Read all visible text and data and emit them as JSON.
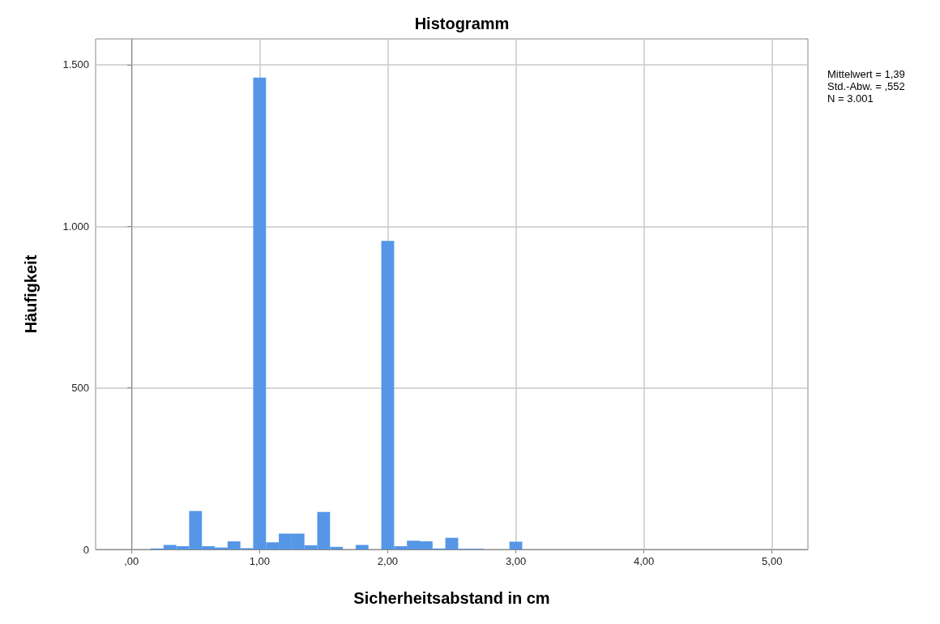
{
  "chart_data": {
    "type": "histogram",
    "title": "Histogramm",
    "xlabel": "Sicherheitsabstand in cm",
    "ylabel": "Häufigkeit",
    "annotations": [
      "Mittelwert = 1,39",
      "Std.-Abw. = ,552",
      "N = 3.001"
    ],
    "bins": [
      0.15,
      0.25,
      0.35,
      0.45,
      0.55,
      0.65,
      0.75,
      0.85,
      0.95,
      1.05,
      1.15,
      1.25,
      1.35,
      1.45,
      1.55,
      1.65,
      1.75,
      1.85,
      1.95,
      2.05,
      2.15,
      2.25,
      2.35,
      2.45,
      2.55,
      2.65,
      2.75,
      2.85,
      2.95,
      3.05
    ],
    "values": [
      3,
      14,
      10,
      119,
      10,
      6,
      25,
      4,
      1460,
      22,
      49,
      49,
      13,
      116,
      8,
      0,
      14,
      0,
      955,
      10,
      27,
      25,
      3,
      36,
      2,
      2,
      0,
      0,
      24
    ],
    "color": "#5596e6",
    "xlim": [
      -0.28,
      5.28
    ],
    "xticks": [
      {
        "value": 0,
        "label": ",00"
      },
      {
        "value": 1,
        "label": "1,00"
      },
      {
        "value": 2,
        "label": "2,00"
      },
      {
        "value": 3,
        "label": "3,00"
      },
      {
        "value": 4,
        "label": "4,00"
      },
      {
        "value": 5,
        "label": "5,00"
      }
    ],
    "ylim": [
      0,
      1580
    ],
    "yticks": [
      0,
      500,
      {
        "value": 1000,
        "label": "1.000"
      },
      {
        "value": 1500,
        "label": "1.500"
      }
    ],
    "grid": true
  }
}
